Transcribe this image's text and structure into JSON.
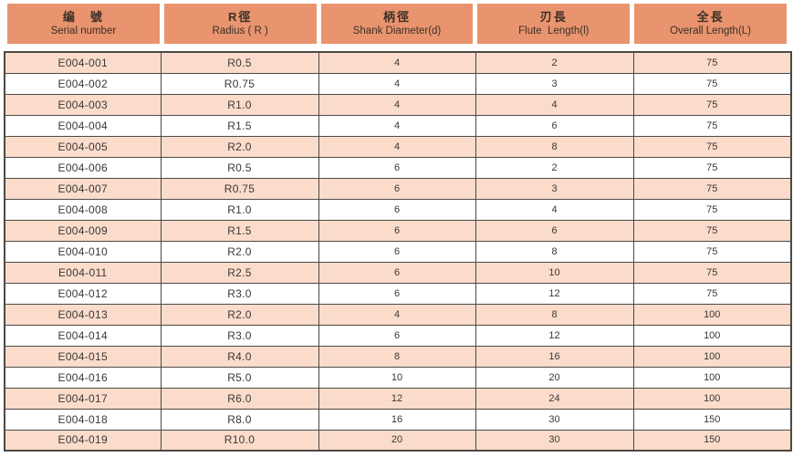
{
  "colors": {
    "header_bg": "#E9946E",
    "row_alt_bg": "#FBDCCB",
    "row_bg": "#FFFFFF",
    "border": "#4C4A47",
    "text": "#3B3835",
    "header_text": "#3A2F27",
    "page_bg": "#FFFFFF"
  },
  "table": {
    "headers": [
      {
        "zh": "编　號",
        "en": "Serial number"
      },
      {
        "zh": "R徑",
        "en": "Radius ( R )"
      },
      {
        "zh": "柄徑",
        "en": "Shank Diameter(d)"
      },
      {
        "zh": "刃長",
        "en": "Flute  Length(l)"
      },
      {
        "zh": "全長",
        "en": "Overall Length(L)"
      }
    ],
    "rows": [
      {
        "serial": "E004-001",
        "radius": "R0.5",
        "shank": "4",
        "flute": "2",
        "overall": "75"
      },
      {
        "serial": "E004-002",
        "radius": "R0.75",
        "shank": "4",
        "flute": "3",
        "overall": "75"
      },
      {
        "serial": "E004-003",
        "radius": "R1.0",
        "shank": "4",
        "flute": "4",
        "overall": "75"
      },
      {
        "serial": "E004-004",
        "radius": "R1.5",
        "shank": "4",
        "flute": "6",
        "overall": "75"
      },
      {
        "serial": "E004-005",
        "radius": "R2.0",
        "shank": "4",
        "flute": "8",
        "overall": "75"
      },
      {
        "serial": "E004-006",
        "radius": "R0.5",
        "shank": "6",
        "flute": "2",
        "overall": "75"
      },
      {
        "serial": "E004-007",
        "radius": "R0.75",
        "shank": "6",
        "flute": "3",
        "overall": "75"
      },
      {
        "serial": "E004-008",
        "radius": "R1.0",
        "shank": "6",
        "flute": "4",
        "overall": "75"
      },
      {
        "serial": "E004-009",
        "radius": "R1.5",
        "shank": "6",
        "flute": "6",
        "overall": "75"
      },
      {
        "serial": "E004-010",
        "radius": "R2.0",
        "shank": "6",
        "flute": "8",
        "overall": "75"
      },
      {
        "serial": "E004-011",
        "radius": "R2.5",
        "shank": "6",
        "flute": "10",
        "overall": "75"
      },
      {
        "serial": "E004-012",
        "radius": "R3.0",
        "shank": "6",
        "flute": "12",
        "overall": "75"
      },
      {
        "serial": "E004-013",
        "radius": "R2.0",
        "shank": "4",
        "flute": "8",
        "overall": "100"
      },
      {
        "serial": "E004-014",
        "radius": "R3.0",
        "shank": "6",
        "flute": "12",
        "overall": "100"
      },
      {
        "serial": "E004-015",
        "radius": "R4.0",
        "shank": "8",
        "flute": "16",
        "overall": "100"
      },
      {
        "serial": "E004-016",
        "radius": "R5.0",
        "shank": "10",
        "flute": "20",
        "overall": "100"
      },
      {
        "serial": "E004-017",
        "radius": "R6.0",
        "shank": "12",
        "flute": "24",
        "overall": "100"
      },
      {
        "serial": "E004-018",
        "radius": "R8.0",
        "shank": "16",
        "flute": "30",
        "overall": "150"
      },
      {
        "serial": "E004-019",
        "radius": "R10.0",
        "shank": "20",
        "flute": "30",
        "overall": "150"
      }
    ]
  }
}
